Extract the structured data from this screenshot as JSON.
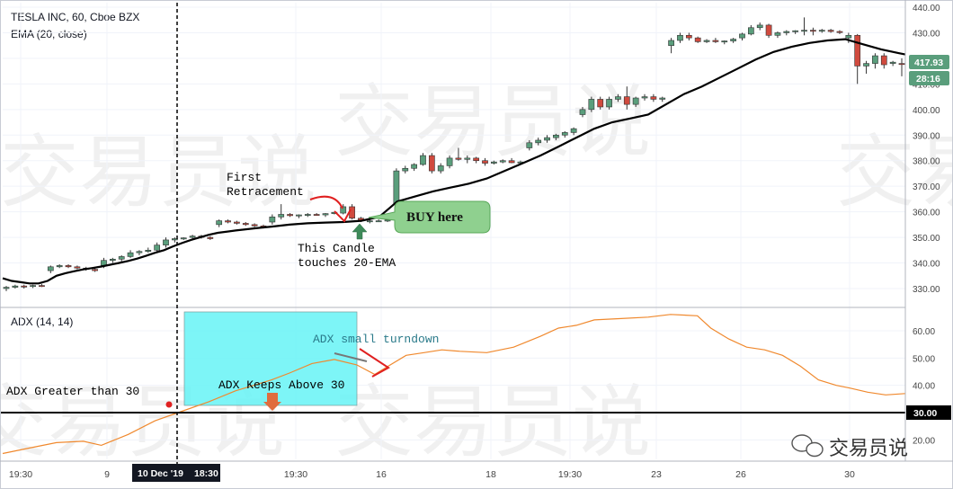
{
  "header": {
    "symbol_line": "TESLA INC, 60, Cboe BZX",
    "ema_line": "EMA (20, close)",
    "adx_line": "ADX (14, 14)"
  },
  "watermark": {
    "text": "交易员说",
    "logo_label": "交易员说"
  },
  "colors": {
    "up": "#5a9e7c",
    "down": "#d04a3e",
    "ema": "#000000",
    "adx": "#f0892e",
    "highlight": "#66f3f6",
    "buy_bubble": "#8fd08f",
    "arrow_red": "#e02020",
    "arrow_green": "#3e8a5a",
    "arrow_orange": "#e06c3e",
    "price_label_bg": "#5a9e7c",
    "adx_line_label_bg": "#000000"
  },
  "price_labels": {
    "last_price": "417.93",
    "countdown": "28:16"
  },
  "adx_label": "30.00",
  "annotations": {
    "first_retracement_1": "First",
    "first_retracement_2": "Retracement",
    "buy_here": "BUY here",
    "candle_touch_1": "This Candle",
    "candle_touch_2": "touches 20-EMA",
    "adx_small_turndown": "ADX small turndown",
    "adx_keeps_above": "ADX Keeps Above 30",
    "adx_greater": "ADX Greater than 30"
  },
  "xaxis": {
    "labels": [
      "19:30",
      "9",
      "19:30",
      "16",
      "18",
      "19:30",
      "23",
      "26",
      "30"
    ],
    "cursor_date": "10 Dec '19",
    "cursor_time": "18:30"
  },
  "chart_data": [
    {
      "type": "candlestick",
      "title": "TESLA INC, 60, Cboe BZX",
      "ylim": [
        325,
        442
      ],
      "yticks": [
        330,
        340,
        350,
        360,
        370,
        380,
        390,
        400,
        410,
        420,
        430,
        440
      ],
      "ytick_labels": [
        "330.00",
        "340.00",
        "350.00",
        "360.00",
        "370.00",
        "380.00",
        "390.00",
        "400.00",
        "410.00",
        "420.00",
        "430.00",
        "440.00"
      ],
      "candles": [
        [
          330,
          331,
          329,
          330.5
        ],
        [
          330.5,
          331.5,
          330,
          331
        ],
        [
          331,
          331.5,
          330,
          330.8
        ],
        [
          330.8,
          331.5,
          330.2,
          331.2
        ],
        [
          331.2,
          331.8,
          330.6,
          331
        ],
        [
          337,
          339,
          336,
          338.5
        ],
        [
          338.5,
          339.5,
          338,
          339
        ],
        [
          339,
          339.5,
          338,
          338.5
        ],
        [
          338.5,
          339,
          337.5,
          338
        ],
        [
          338,
          338.5,
          337,
          337.5
        ],
        [
          337.5,
          338,
          336.5,
          337
        ],
        [
          339,
          342,
          338,
          341
        ],
        [
          341,
          342,
          340,
          341.5
        ],
        [
          341.5,
          343,
          340.5,
          342.5
        ],
        [
          342.5,
          345,
          342,
          344
        ],
        [
          344,
          345,
          343,
          344.5
        ],
        [
          344.5,
          346,
          344,
          345
        ],
        [
          345,
          348,
          344,
          347
        ],
        [
          347,
          350,
          346,
          349
        ],
        [
          349,
          350,
          348,
          349.5
        ],
        [
          349.5,
          350,
          349,
          349.8
        ],
        [
          350,
          351,
          349,
          350.5
        ],
        [
          350.5,
          351,
          349.5,
          350
        ],
        [
          350,
          350.5,
          349,
          349.5
        ],
        [
          355,
          357,
          354,
          356.5
        ],
        [
          356.5,
          357,
          355.5,
          356
        ],
        [
          356,
          356.5,
          355,
          355.5
        ],
        [
          355.5,
          356,
          354.5,
          355
        ],
        [
          355,
          355.5,
          354,
          354.5
        ],
        [
          354.5,
          355,
          353.5,
          354
        ],
        [
          356,
          359,
          355,
          358
        ],
        [
          358,
          363,
          357,
          359
        ],
        [
          359,
          359.5,
          358,
          358.5
        ],
        [
          358.5,
          359,
          357.5,
          358.8
        ],
        [
          358.8,
          359.5,
          358,
          359
        ],
        [
          359,
          359.5,
          358.5,
          358.8
        ],
        [
          358.8,
          359.5,
          358,
          359.3
        ],
        [
          359.3,
          360,
          359,
          359.8
        ],
        [
          359.5,
          363,
          359,
          362
        ],
        [
          362,
          363,
          357,
          357.5
        ],
        [
          357.5,
          358,
          356,
          356.5
        ],
        [
          356.5,
          357,
          355.5,
          356.5
        ],
        [
          356.5,
          357,
          356,
          356.5
        ],
        [
          356.5,
          357,
          356,
          356.8
        ],
        [
          363,
          377,
          362,
          376
        ],
        [
          376,
          378,
          375,
          377
        ],
        [
          377,
          379,
          376,
          378.5
        ],
        [
          378.5,
          383,
          378,
          382
        ],
        [
          382,
          383,
          375,
          376
        ],
        [
          376,
          379,
          375,
          378
        ],
        [
          378,
          382,
          377,
          381
        ],
        [
          381,
          385,
          380,
          380.5
        ],
        [
          380.5,
          382,
          379,
          381
        ],
        [
          381,
          381.5,
          379,
          380
        ],
        [
          380,
          381,
          378,
          379
        ],
        [
          379,
          380,
          378.5,
          379.5
        ],
        [
          379.5,
          380.5,
          379,
          380
        ],
        [
          380,
          381,
          379,
          379.2
        ],
        [
          379.2,
          380,
          378.5,
          379.5
        ],
        [
          385,
          388,
          384,
          387
        ],
        [
          387,
          389,
          386,
          388
        ],
        [
          388,
          390,
          387,
          389
        ],
        [
          389,
          390.5,
          388,
          390
        ],
        [
          390,
          391.5,
          389,
          391
        ],
        [
          391,
          393,
          390,
          392.5
        ],
        [
          398,
          401,
          397,
          400
        ],
        [
          400,
          405,
          399,
          404
        ],
        [
          404,
          405,
          400,
          401
        ],
        [
          401,
          405,
          400,
          404
        ],
        [
          404,
          406,
          403,
          405
        ],
        [
          405,
          409,
          400,
          402
        ],
        [
          402,
          405,
          401,
          404.5
        ],
        [
          404.5,
          406,
          403.5,
          405
        ],
        [
          405,
          406,
          403,
          404
        ],
        [
          404,
          405,
          403,
          404.5
        ],
        [
          425,
          428,
          422,
          427
        ],
        [
          427,
          430,
          426,
          429
        ],
        [
          429,
          430,
          427,
          428
        ],
        [
          428,
          428.5,
          426,
          426.5
        ],
        [
          426.5,
          427.5,
          426,
          427
        ],
        [
          427,
          428,
          426,
          426.5
        ],
        [
          426.5,
          427,
          425.5,
          426.8
        ],
        [
          426.8,
          428,
          426,
          427.5
        ],
        [
          428,
          430,
          427,
          429.5
        ],
        [
          429.5,
          433,
          429,
          432
        ],
        [
          432,
          434,
          431,
          433
        ],
        [
          433,
          433.5,
          428,
          429
        ],
        [
          429,
          430.5,
          428,
          430
        ],
        [
          430,
          431,
          429,
          430.5
        ],
        [
          430.5,
          431,
          429.5,
          430.8
        ],
        [
          430.8,
          436,
          429,
          431
        ],
        [
          431,
          432,
          429,
          430.8
        ],
        [
          430.8,
          431.5,
          430,
          431
        ],
        [
          431,
          431.5,
          430,
          430.5
        ],
        [
          430.5,
          431,
          429.5,
          430.2
        ],
        [
          428,
          430,
          426,
          429
        ],
        [
          429,
          429.5,
          410,
          417
        ],
        [
          417,
          419,
          414,
          418
        ],
        [
          418,
          422,
          416,
          421
        ],
        [
          421,
          422,
          416,
          417.5
        ],
        [
          418,
          419,
          417,
          418.5
        ],
        [
          418,
          420,
          413,
          417.93
        ]
      ],
      "ema_20": [
        [
          0,
          334
        ],
        [
          10,
          333
        ],
        [
          20,
          332.5
        ],
        [
          30,
          332
        ],
        [
          40,
          332
        ],
        [
          50,
          333
        ],
        [
          60,
          335
        ],
        [
          70,
          336
        ],
        [
          80,
          336.8
        ],
        [
          90,
          337.5
        ],
        [
          100,
          338
        ],
        [
          110,
          338.6
        ],
        [
          120,
          339.3
        ],
        [
          130,
          340
        ],
        [
          140,
          340.8
        ],
        [
          150,
          341.7
        ],
        [
          160,
          342.8
        ],
        [
          170,
          344
        ],
        [
          180,
          345
        ],
        [
          190,
          346.5
        ],
        [
          200,
          347.8
        ],
        [
          210,
          349
        ],
        [
          220,
          350
        ],
        [
          230,
          351
        ],
        [
          240,
          351.8
        ],
        [
          260,
          352.7
        ],
        [
          280,
          353.5
        ],
        [
          300,
          354.2
        ],
        [
          320,
          355
        ],
        [
          340,
          355.5
        ],
        [
          360,
          355.8
        ],
        [
          380,
          356
        ],
        [
          400,
          356.5
        ],
        [
          420,
          358
        ],
        [
          430,
          361
        ],
        [
          440,
          364
        ],
        [
          460,
          366
        ],
        [
          480,
          368
        ],
        [
          500,
          369.5
        ],
        [
          520,
          371
        ],
        [
          540,
          373
        ],
        [
          560,
          376
        ],
        [
          580,
          379
        ],
        [
          600,
          382
        ],
        [
          620,
          385.5
        ],
        [
          640,
          389
        ],
        [
          660,
          392.5
        ],
        [
          680,
          395
        ],
        [
          700,
          396.5
        ],
        [
          720,
          398
        ],
        [
          740,
          402
        ],
        [
          760,
          406
        ],
        [
          780,
          409
        ],
        [
          800,
          412.5
        ],
        [
          820,
          416
        ],
        [
          840,
          419.5
        ],
        [
          860,
          422.5
        ],
        [
          880,
          424.5
        ],
        [
          900,
          426
        ],
        [
          920,
          427
        ],
        [
          940,
          427.5
        ],
        [
          960,
          425.5
        ],
        [
          980,
          423.5
        ],
        [
          1000,
          422
        ],
        [
          1007,
          421.5
        ]
      ]
    },
    {
      "type": "line",
      "title": "ADX (14, 14)",
      "ylim": [
        13,
        68
      ],
      "yticks": [
        20,
        30,
        40,
        50,
        60
      ],
      "ytick_labels": [
        "20.00",
        "30.00",
        "40.00",
        "50.00",
        "60.00"
      ],
      "reference_line": 30,
      "adx": [
        [
          0,
          15
        ],
        [
          30,
          17
        ],
        [
          60,
          19
        ],
        [
          90,
          19.5
        ],
        [
          110,
          18
        ],
        [
          140,
          22
        ],
        [
          170,
          27
        ],
        [
          200,
          30.5
        ],
        [
          230,
          34
        ],
        [
          260,
          38
        ],
        [
          280,
          40
        ],
        [
          300,
          42
        ],
        [
          320,
          44.5
        ],
        [
          345,
          48
        ],
        [
          370,
          49.5
        ],
        [
          395,
          47.5
        ],
        [
          415,
          44
        ],
        [
          430,
          47
        ],
        [
          450,
          51
        ],
        [
          470,
          52
        ],
        [
          490,
          53
        ],
        [
          510,
          52.5
        ],
        [
          540,
          52
        ],
        [
          570,
          54
        ],
        [
          600,
          58
        ],
        [
          620,
          61
        ],
        [
          640,
          62
        ],
        [
          660,
          64
        ],
        [
          690,
          64.5
        ],
        [
          720,
          65
        ],
        [
          745,
          66
        ],
        [
          775,
          65.5
        ],
        [
          790,
          61
        ],
        [
          810,
          57
        ],
        [
          830,
          54
        ],
        [
          850,
          53
        ],
        [
          870,
          51
        ],
        [
          890,
          47
        ],
        [
          910,
          42
        ],
        [
          930,
          40
        ],
        [
          945,
          39
        ],
        [
          965,
          37.5
        ],
        [
          985,
          36.5
        ],
        [
          1007,
          37
        ]
      ]
    }
  ]
}
